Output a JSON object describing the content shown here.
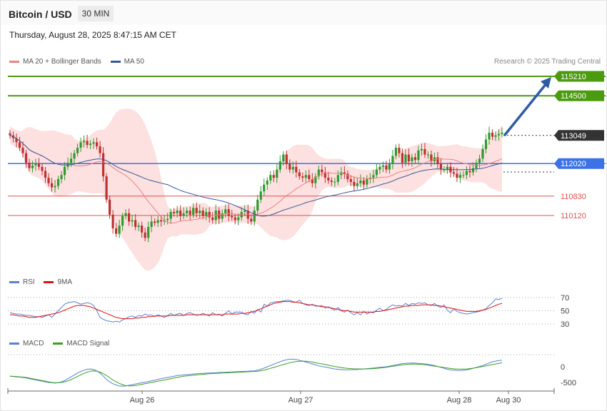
{
  "header": {
    "title": "Bitcoin / USD",
    "timeframe": "30 MIN",
    "datetime": "Thursday, August 28, 2025 8:47:15 AM CET"
  },
  "credit": "Research © 2025 Trading Central",
  "legends": {
    "price": [
      {
        "label": "MA 20 + Bollinger Bands",
        "color": "#f08080"
      },
      {
        "label": "MA 50",
        "color": "#34589a"
      }
    ],
    "rsi": [
      {
        "label": "RSI",
        "color": "#5a7fd4"
      },
      {
        "label": "9MA",
        "color": "#e01010"
      }
    ],
    "macd": [
      {
        "label": "MACD",
        "color": "#5a7fd4"
      },
      {
        "label": "MACD Signal",
        "color": "#3aa020"
      }
    ]
  },
  "colors": {
    "bull": "#2f9a2f",
    "bear": "#c03030",
    "band_fill": "#fde0e0",
    "resistance": "#4c9a10",
    "support": "#e05050",
    "pivot": "#3b73e6",
    "current": "#333333",
    "arrow": "#2f5aa8"
  },
  "chart_data": {
    "type": "candlestick",
    "x_ticks": [
      "Aug 26",
      "Aug 27",
      "Aug 28",
      "Aug 30"
    ],
    "price_levels": [
      {
        "value": 115210,
        "label": "115210",
        "kind": "resistance"
      },
      {
        "value": 114500,
        "label": "114500",
        "kind": "resistance"
      },
      {
        "value": 113049,
        "label": "113049",
        "kind": "current"
      },
      {
        "value": 112020,
        "label": "112020",
        "kind": "pivot"
      },
      {
        "value": 110830,
        "label": "110830",
        "kind": "support"
      },
      {
        "value": 110120,
        "label": "110120",
        "kind": "support"
      }
    ],
    "price_close": [
      113050,
      112950,
      112800,
      112600,
      112400,
      112050,
      111850,
      111950,
      112000,
      111900,
      111750,
      111500,
      111300,
      111150,
      111200,
      111450,
      111600,
      111900,
      112050,
      112200,
      112400,
      112600,
      112800,
      112850,
      112700,
      112750,
      112800,
      112650,
      112400,
      111550,
      110700,
      110150,
      109650,
      109450,
      109750,
      110100,
      110200,
      109900,
      109950,
      109700,
      109750,
      109500,
      109300,
      109700,
      109900,
      109850,
      109950,
      109900,
      109950,
      110000,
      110250,
      110200,
      110300,
      110100,
      110200,
      110300,
      110150,
      110400,
      110200,
      110300,
      110100,
      110250,
      110050,
      109950,
      110300,
      110000,
      110200,
      110350,
      110100,
      110050,
      109950,
      110050,
      110250,
      110300,
      110000,
      109900,
      110300,
      110700,
      111000,
      111250,
      111400,
      111600,
      111500,
      111800,
      112100,
      112350,
      112000,
      111800,
      111900,
      111700,
      111550,
      111500,
      111600,
      111450,
      111300,
      111550,
      111800,
      111700,
      111500,
      111400,
      111350,
      111350,
      111600,
      111700,
      111650,
      111450,
      111350,
      111200,
      111300,
      111400,
      111250,
      111450,
      111500,
      111600,
      111800,
      111900,
      111950,
      111800,
      112000,
      112300,
      112600,
      112400,
      112050,
      112350,
      112100,
      112250,
      112150,
      112500,
      112550,
      112350,
      112350,
      112100,
      112250,
      112000,
      111800,
      111800,
      111900,
      111700,
      111650,
      111500,
      111600,
      111600,
      111750,
      111700,
      111850,
      112050,
      112200,
      112550,
      112900,
      113150,
      113000,
      113050,
      113100,
      113150
    ],
    "rsi_range": [
      20,
      80
    ],
    "rsi_levels": [
      70,
      50,
      30
    ],
    "rsi": [
      47,
      46,
      45,
      45,
      44,
      43,
      43,
      42,
      41,
      41,
      40,
      42,
      44,
      40,
      45,
      50,
      55,
      60,
      62,
      63,
      64,
      62,
      60,
      61,
      62,
      61,
      58,
      50,
      40,
      37,
      35,
      34,
      33,
      34,
      33,
      36,
      38,
      41,
      42,
      40,
      43,
      42,
      45,
      43,
      44,
      41,
      44,
      42,
      40,
      43,
      46,
      43,
      45,
      46,
      43,
      46,
      47,
      45,
      43,
      44,
      46,
      44,
      42,
      47,
      44,
      45,
      42,
      46,
      50,
      45,
      48,
      48,
      48,
      45,
      44,
      49,
      46,
      52,
      48,
      60,
      57,
      62,
      63,
      64,
      64,
      65,
      66,
      66,
      64,
      63,
      66,
      61,
      59,
      58,
      60,
      57,
      57,
      58,
      54,
      56,
      53,
      51,
      55,
      50,
      48,
      51,
      47,
      44,
      47,
      44,
      49,
      45,
      48,
      47,
      51,
      54,
      50,
      52,
      56,
      59,
      57,
      58,
      57,
      61,
      58,
      61,
      60,
      62,
      61,
      62,
      59,
      58,
      61,
      57,
      55,
      59,
      51,
      47,
      53,
      49,
      47,
      46,
      45,
      46,
      47,
      48,
      49,
      51,
      53,
      58,
      62,
      68,
      67,
      69
    ],
    "rsi_ma": [
      44,
      44,
      43,
      42,
      42,
      41,
      40,
      40,
      40,
      41,
      42,
      43,
      44,
      45,
      46,
      47,
      49,
      51,
      53,
      55,
      57,
      58,
      58,
      58,
      57,
      56,
      54,
      52,
      50,
      48,
      46,
      44,
      42,
      40,
      39,
      38,
      38,
      38,
      38,
      39,
      39,
      40,
      40,
      41,
      41,
      42,
      42,
      42,
      42,
      42,
      43,
      43,
      43,
      43,
      43,
      44,
      44,
      44,
      44,
      44,
      44,
      44,
      44,
      44,
      44,
      44,
      44,
      45,
      45,
      45,
      45,
      45,
      46,
      46,
      47,
      48,
      49,
      51,
      53,
      55,
      57,
      59,
      61,
      62,
      63,
      64,
      64,
      64,
      63,
      63,
      62,
      61,
      60,
      59,
      59,
      58,
      57,
      56,
      56,
      55,
      54,
      53,
      52,
      51,
      50,
      50,
      49,
      48,
      48,
      48,
      48,
      48,
      48,
      48,
      49,
      49,
      50,
      51,
      52,
      53,
      54,
      55,
      56,
      57,
      57,
      58,
      58,
      58,
      59,
      59,
      59,
      59,
      58,
      58,
      57,
      56,
      55,
      54,
      53,
      52,
      51,
      50,
      49,
      49,
      49,
      49,
      50,
      51,
      52,
      54,
      56,
      58,
      60,
      61
    ],
    "macd_range": [
      -700,
      350
    ],
    "macd_levels": [
      0,
      -500
    ],
    "macd": [
      -300,
      -310,
      -320,
      -330,
      -340,
      -360,
      -380,
      -400,
      -420,
      -440,
      -460,
      -480,
      -500,
      -510,
      -520,
      -510,
      -480,
      -440,
      -380,
      -320,
      -260,
      -200,
      -150,
      -110,
      -80,
      -70,
      -90,
      -130,
      -200,
      -300,
      -400,
      -480,
      -540,
      -580,
      -610,
      -620,
      -610,
      -590,
      -570,
      -550,
      -530,
      -510,
      -490,
      -470,
      -450,
      -430,
      -400,
      -380,
      -360,
      -340,
      -320,
      -300,
      -280,
      -270,
      -260,
      -250,
      -240,
      -230,
      -220,
      -215,
      -210,
      -205,
      -200,
      -195,
      -190,
      -185,
      -180,
      -175,
      -170,
      -165,
      -160,
      -155,
      -150,
      -145,
      -140,
      -135,
      -130,
      -110,
      -80,
      -40,
      0,
      40,
      80,
      120,
      160,
      200,
      220,
      240,
      240,
      230,
      210,
      180,
      150,
      120,
      90,
      60,
      30,
      10,
      -10,
      -30,
      -50,
      -70,
      -80,
      -90,
      -95,
      -100,
      -95,
      -90,
      -85,
      -80,
      -70,
      -60,
      -50,
      -40,
      -30,
      -20,
      -10,
      0,
      20,
      40,
      60,
      80,
      100,
      110,
      115,
      120,
      115,
      110,
      100,
      90,
      80,
      60,
      40,
      10,
      -20,
      -50,
      -80,
      -100,
      -110,
      -115,
      -120,
      -110,
      -100,
      -80,
      -50,
      -20,
      10,
      40,
      80,
      120,
      160,
      180,
      200,
      210
    ],
    "macd_signal": [
      -300,
      -305,
      -310,
      -320,
      -330,
      -340,
      -360,
      -380,
      -400,
      -420,
      -440,
      -460,
      -480,
      -500,
      -510,
      -510,
      -500,
      -480,
      -450,
      -410,
      -360,
      -310,
      -260,
      -210,
      -170,
      -140,
      -130,
      -140,
      -170,
      -220,
      -280,
      -350,
      -420,
      -480,
      -530,
      -570,
      -600,
      -610,
      -610,
      -600,
      -580,
      -560,
      -540,
      -520,
      -500,
      -480,
      -460,
      -440,
      -420,
      -400,
      -380,
      -360,
      -340,
      -320,
      -300,
      -290,
      -280,
      -270,
      -260,
      -250,
      -240,
      -230,
      -220,
      -215,
      -210,
      -205,
      -200,
      -195,
      -190,
      -185,
      -180,
      -175,
      -170,
      -165,
      -160,
      -155,
      -150,
      -140,
      -125,
      -105,
      -80,
      -50,
      -20,
      10,
      40,
      70,
      100,
      130,
      150,
      165,
      175,
      180,
      175,
      165,
      150,
      130,
      110,
      90,
      70,
      50,
      30,
      10,
      -10,
      -25,
      -40,
      -50,
      -60,
      -65,
      -68,
      -70,
      -70,
      -68,
      -65,
      -60,
      -50,
      -40,
      -30,
      -15,
      0,
      15,
      30,
      45,
      60,
      70,
      80,
      85,
      85,
      80,
      72,
      62,
      50,
      35,
      20,
      5,
      -10,
      -25,
      -40,
      -55,
      -65,
      -72,
      -75,
      -75,
      -70,
      -60,
      -45,
      -30,
      -10,
      10,
      30,
      50,
      70,
      90,
      110,
      130
    ]
  }
}
